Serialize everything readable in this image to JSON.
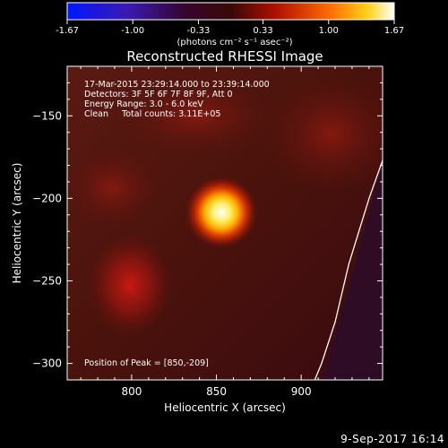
{
  "colorbar": {
    "tick_labels": [
      "-1.67",
      "-1.00",
      "-0.33",
      "0.33",
      "1.00",
      "1.67"
    ],
    "tick_values": [
      -1.67,
      -1.0,
      -0.33,
      0.33,
      1.0,
      1.67
    ],
    "range": [
      -1.67,
      1.67
    ],
    "unit_label": "(photons cm⁻² s⁻¹ asec⁻²)"
  },
  "plot": {
    "title": "Reconstructed RHESSI Image",
    "info_lines": [
      "17-Mar-2015 23:29:14.000 to 23:39:14.000",
      "Detectors: 3F 5F 6F 7F 8F 9F, Att 0",
      "Energy Range: 3.0 - 6.0 keV",
      "Clean     Total counts: 3.11E+05"
    ],
    "peak_text": "Position of Peak = [850,-209]"
  },
  "chart_data": {
    "type": "heatmap",
    "title": "Reconstructed RHESSI Image",
    "xlabel": "Heliocentric X (arcsec)",
    "ylabel": "Heliocentric Y (arcsec)",
    "xlim": [
      762,
      948
    ],
    "ylim": [
      -310,
      -120
    ],
    "x_ticks": [
      800,
      850,
      900
    ],
    "y_ticks": [
      -300,
      -250,
      -200,
      -150
    ],
    "colormap": "rhessi-bipolar (blue-purple-red-yellow-white)",
    "value_range": [
      -1.67,
      1.67
    ],
    "peak": {
      "x": 850,
      "y": -209,
      "value": 1.67
    },
    "secondary_sources": [
      {
        "x": 795,
        "y": -248,
        "value": 0.5
      },
      {
        "x": 785,
        "y": -190,
        "value": 0.35
      },
      {
        "x": 930,
        "y": -150,
        "value": 0.3
      }
    ],
    "limb_curve": [
      [
        948,
        -177
      ],
      [
        940,
        -200
      ],
      [
        928,
        -240
      ],
      [
        920,
        -275
      ],
      [
        912,
        -300
      ],
      [
        908,
        -310
      ]
    ]
  },
  "footer": {
    "timestamp": "9-Sep-2017 16:14"
  }
}
